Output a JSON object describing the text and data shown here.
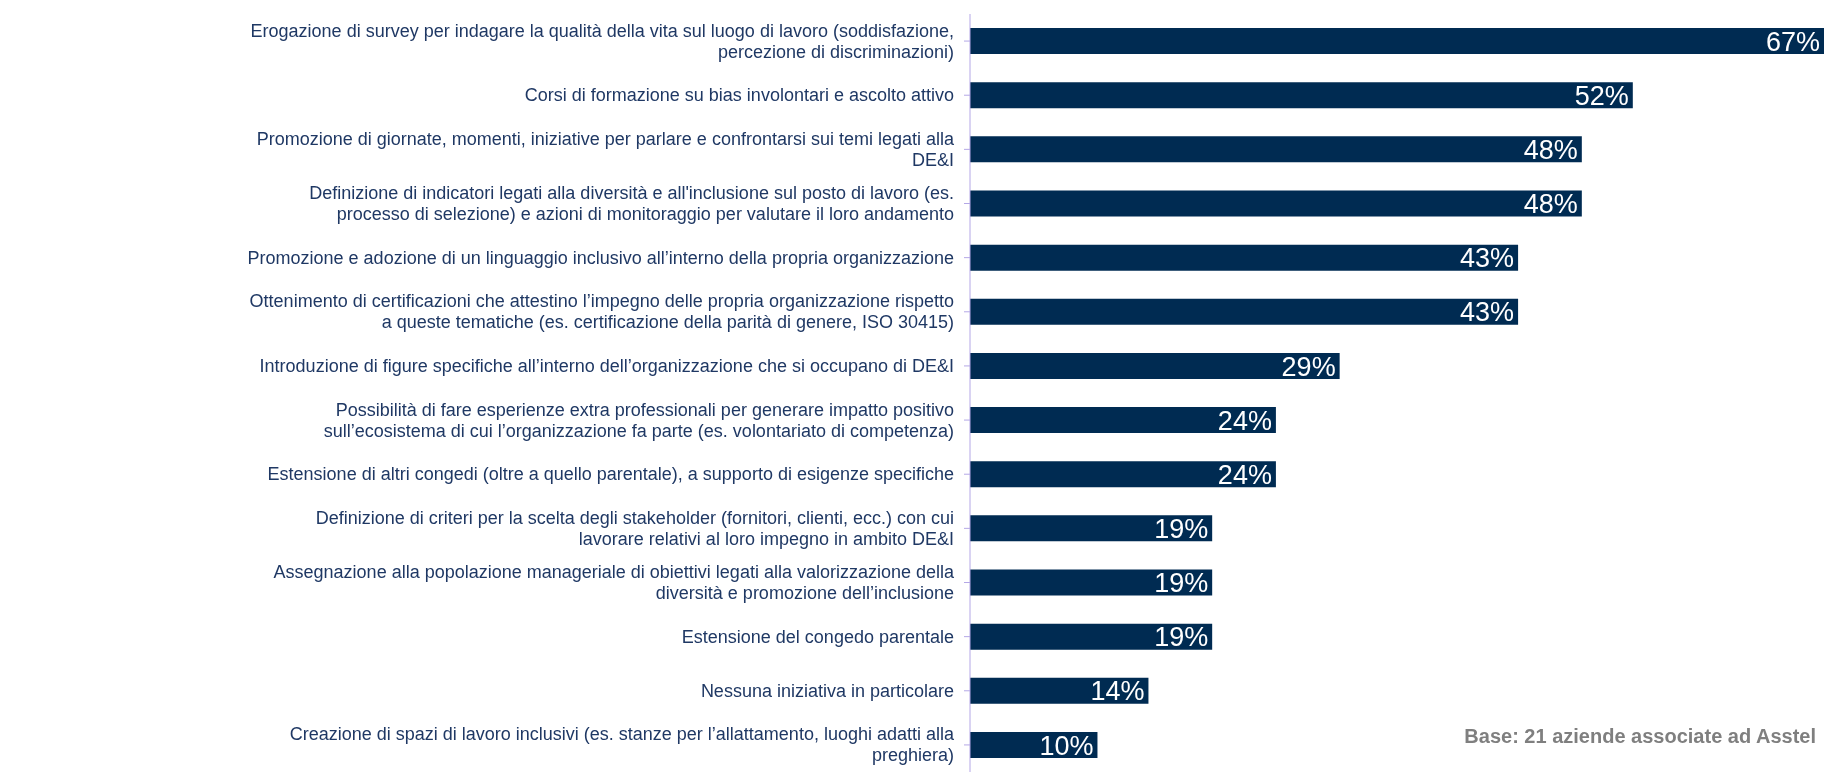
{
  "chart_data": {
    "type": "bar",
    "orientation": "horizontal",
    "categories": [
      "Erogazione di survey per indagare la qualità della vita sul luogo di lavoro (soddisfazione, percezione di discriminazioni)",
      "Corsi di formazione su bias involontari e ascolto attivo",
      "Promozione di giornate, momenti, iniziative per parlare e confrontarsi sui temi legati alla DE&I",
      "Definizione di indicatori legati alla diversità e all'inclusione sul posto di lavoro (es. processo di selezione) e azioni di monitoraggio per valutare il loro andamento",
      "Promozione e adozione di un linguaggio inclusivo all’interno della propria organizzazione",
      "Ottenimento di certificazioni che attestino l’impegno delle propria organizzazione rispetto a queste tematiche (es.  certificazione della parità di genere, ISO 30415)",
      "Introduzione di figure specifiche all’interno dell’organizzazione che si occupano di DE&I",
      "Possibilità di fare esperienze extra professionali per generare impatto positivo sull’ecosistema di cui l’organizzazione fa parte (es. volontariato di competenza)",
      "Estensione di altri congedi (oltre a quello parentale), a supporto di esigenze specifiche",
      "Definizione di criteri per la scelta degli stakeholder (fornitori, clienti, ecc.) con cui lavorare relativi al loro impegno in ambito DE&I",
      "Assegnazione alla popolazione manageriale di obiettivi legati alla valorizzazione della diversità e promozione dell’inclusione",
      "Estensione del congedo parentale",
      "Nessuna iniziativa in particolare",
      "Creazione di spazi di lavoro inclusivi (es. stanze per l’allattamento, luoghi adatti alla preghiera)"
    ],
    "values": [
      67,
      52,
      48,
      48,
      43,
      43,
      29,
      24,
      24,
      19,
      19,
      19,
      14,
      10
    ],
    "value_labels": [
      "67%",
      "52%",
      "48%",
      "48%",
      "43%",
      "43%",
      "29%",
      "24%",
      "24%",
      "19%",
      "19%",
      "19%",
      "14%",
      "10%"
    ],
    "color": "#002b52",
    "annotations": [
      "Base: 21 aziende associate ad Asstel"
    ]
  }
}
